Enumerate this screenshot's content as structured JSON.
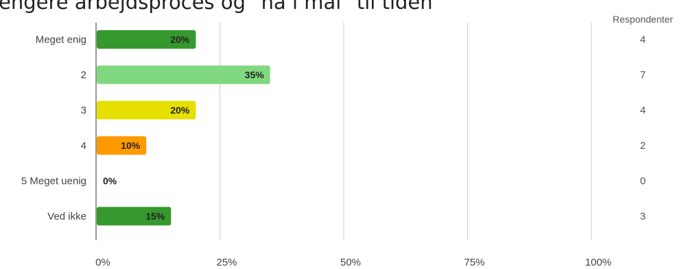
{
  "title": "engere arbejdsproces og \"nå i mål\" til tiden",
  "chart_data": {
    "type": "bar",
    "orientation": "horizontal",
    "title": "engere arbejdsproces og \"nå i mål\" til tiden",
    "categories": [
      "Meget enig",
      "2",
      "3",
      "4",
      "5 Meget uenig",
      "Ved ikke"
    ],
    "values": [
      20,
      35,
      20,
      10,
      0,
      15
    ],
    "value_labels": [
      "20%",
      "35%",
      "20%",
      "10%",
      "0%",
      "15%"
    ],
    "counts": [
      4,
      7,
      4,
      2,
      0,
      3
    ],
    "counts_header": "Respondenter",
    "colors": [
      "#36992e",
      "#80d980",
      "#e6e000",
      "#ff9900",
      "#36992e",
      "#36992e"
    ],
    "xlim": [
      0,
      100
    ],
    "x_ticks": [
      0,
      25,
      50,
      75,
      100
    ],
    "x_tick_labels": [
      "0%",
      "25%",
      "50%",
      "75%",
      "100%"
    ],
    "grid": true
  }
}
